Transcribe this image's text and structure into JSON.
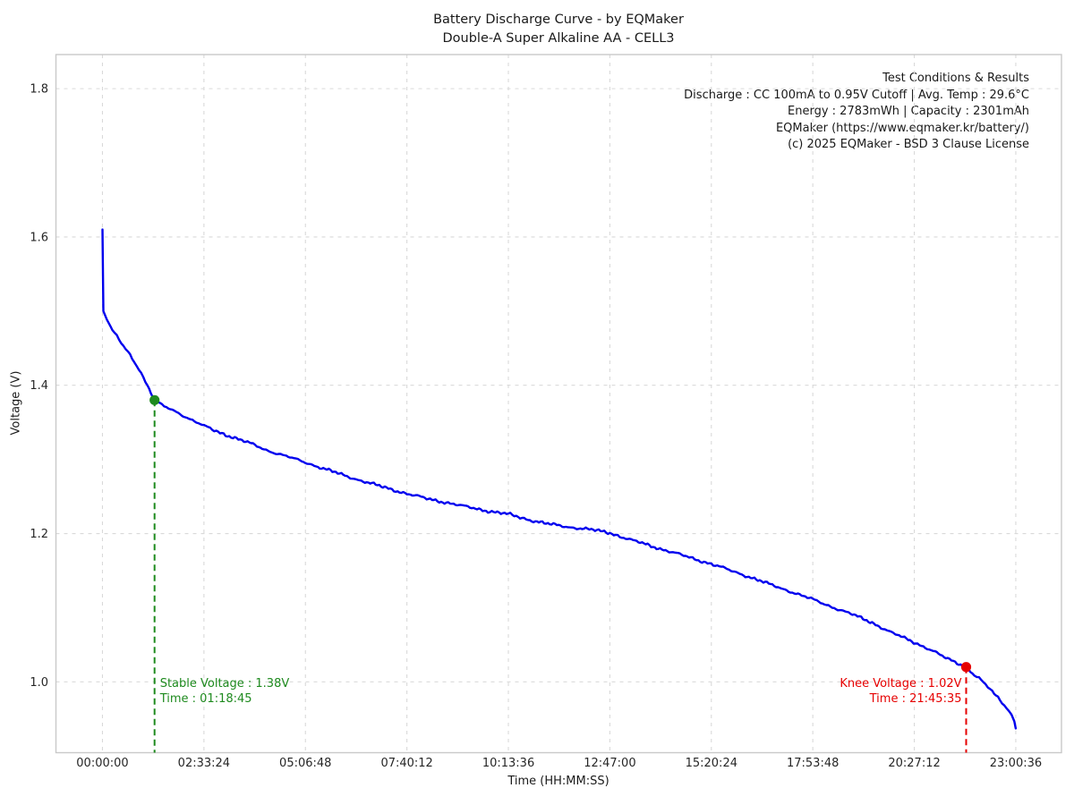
{
  "header": {
    "title_line1": "Battery Discharge Curve - by EQMaker",
    "title_line2": "Double-A Super Alkaline AA - CELL3"
  },
  "info_box": {
    "lines": [
      "Test Conditions & Results",
      "Discharge : CC 100mA to 0.95V Cutoff | Avg. Temp : 29.6°C",
      "Energy : 2783mWh | Capacity : 2301mAh",
      "EQMaker (https://www.eqmaker.kr/battery/)",
      "(c) 2025 EQMaker - BSD 3 Clause License"
    ]
  },
  "chart_data": {
    "type": "line",
    "title": "Battery Discharge Curve - by EQMaker / Double-A Super Alkaline AA - CELL3",
    "xlabel": "Time (HH:MM:SS)",
    "ylabel": "Voltage (V)",
    "grid": true,
    "x_tick_labels": [
      "00:00:00",
      "02:33:24",
      "05:06:48",
      "07:40:12",
      "10:13:36",
      "12:47:00",
      "15:20:24",
      "17:53:48",
      "20:27:12",
      "23:00:36"
    ],
    "x_tick_seconds": [
      0,
      9204,
      18408,
      27612,
      36816,
      46020,
      55224,
      64428,
      73632,
      82836
    ],
    "y_ticks": [
      1.0,
      1.2,
      1.4,
      1.6,
      1.8
    ],
    "y_tick_labels": [
      "1.0",
      "1.2",
      "1.4",
      "1.6",
      "1.8"
    ],
    "xlim_seconds": [
      -4220,
      86980
    ],
    "ylim": [
      0.9045,
      1.846
    ],
    "series": [
      {
        "name": "discharge-voltage",
        "color": "#0000ee",
        "points": [
          [
            0,
            1.61
          ],
          [
            80,
            1.5
          ],
          [
            400,
            1.489
          ],
          [
            900,
            1.474
          ],
          [
            1500,
            1.461
          ],
          [
            2100,
            1.449
          ],
          [
            2700,
            1.436
          ],
          [
            3300,
            1.423
          ],
          [
            3900,
            1.405
          ],
          [
            4400,
            1.39
          ],
          [
            4725,
            1.38
          ],
          [
            5200,
            1.374
          ],
          [
            6000,
            1.369
          ],
          [
            7000,
            1.362
          ],
          [
            8000,
            1.354
          ],
          [
            9204,
            1.345
          ],
          [
            10500,
            1.337
          ],
          [
            12000,
            1.329
          ],
          [
            13500,
            1.321
          ],
          [
            15000,
            1.312
          ],
          [
            16500,
            1.305
          ],
          [
            18408,
            1.296
          ],
          [
            20200,
            1.287
          ],
          [
            22000,
            1.278
          ],
          [
            23800,
            1.27
          ],
          [
            25600,
            1.262
          ],
          [
            27612,
            1.254
          ],
          [
            29400,
            1.247
          ],
          [
            31200,
            1.242
          ],
          [
            33000,
            1.236
          ],
          [
            34800,
            1.231
          ],
          [
            36816,
            1.226
          ],
          [
            38600,
            1.219
          ],
          [
            40400,
            1.213
          ],
          [
            42200,
            1.209
          ],
          [
            44000,
            1.206
          ],
          [
            46020,
            1.201
          ],
          [
            47800,
            1.192
          ],
          [
            49600,
            1.184
          ],
          [
            51400,
            1.176
          ],
          [
            53200,
            1.168
          ],
          [
            55224,
            1.159
          ],
          [
            57000,
            1.15
          ],
          [
            58800,
            1.141
          ],
          [
            60600,
            1.131
          ],
          [
            62400,
            1.122
          ],
          [
            64428,
            1.111
          ],
          [
            66200,
            1.101
          ],
          [
            68000,
            1.091
          ],
          [
            69800,
            1.08
          ],
          [
            71600,
            1.066
          ],
          [
            73400,
            1.055
          ],
          [
            75000,
            1.044
          ],
          [
            76500,
            1.032
          ],
          [
            77500,
            1.026
          ],
          [
            78335,
            1.02
          ],
          [
            79100,
            1.009
          ],
          [
            79900,
            0.999
          ],
          [
            80700,
            0.987
          ],
          [
            81400,
            0.976
          ],
          [
            82000,
            0.966
          ],
          [
            82450,
            0.955
          ],
          [
            82700,
            0.947
          ],
          [
            82836,
            0.937
          ]
        ]
      }
    ],
    "markers": [
      {
        "name": "stable-voltage-marker",
        "color": "#1e8a1e",
        "t_s": 4725,
        "v": 1.38,
        "label_line1": "Stable Voltage : 1.38V",
        "label_line2": "Time : 01:18:45",
        "label_align": "left"
      },
      {
        "name": "knee-voltage-marker",
        "color": "#e60000",
        "t_s": 78335,
        "v": 1.02,
        "label_line1": "Knee Voltage : 1.02V",
        "label_line2": "Time : 21:45:35",
        "label_align": "right"
      }
    ],
    "style": {
      "grid_color": "#d9d9d9",
      "spine_color": "#c9c9c9",
      "tick_label_color": "#262626",
      "curve_color": "#0000ee"
    }
  }
}
